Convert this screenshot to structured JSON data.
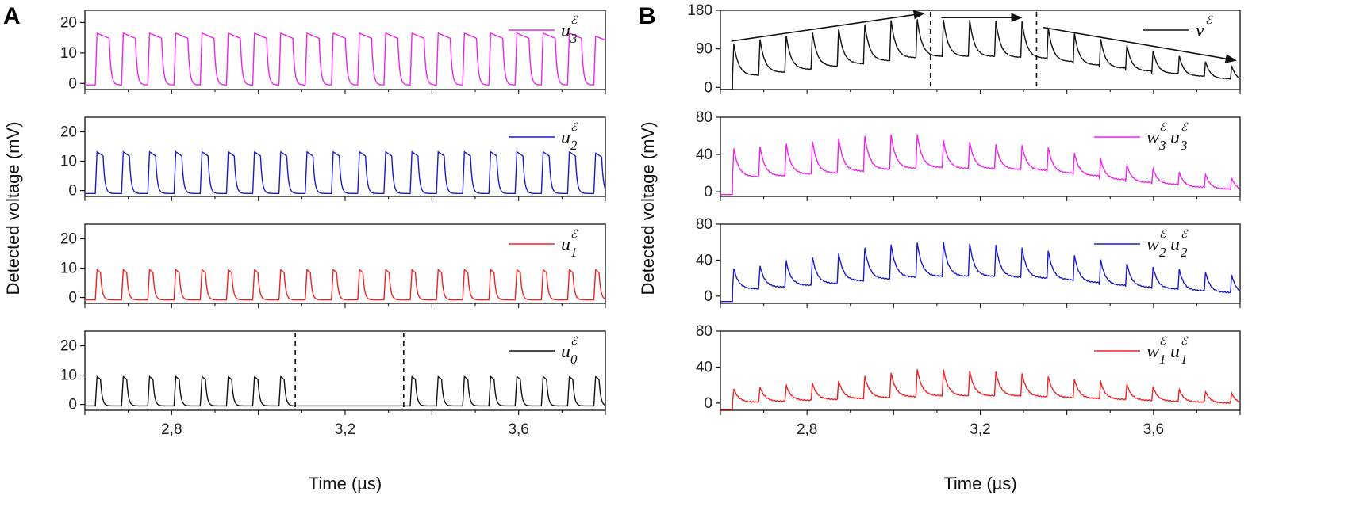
{
  "figure": {
    "panel_a_letter": "A",
    "panel_b_letter": "B"
  },
  "chart_data": [
    {
      "id": "A1",
      "panel": "A",
      "type": "line",
      "title": "",
      "xlabel": "",
      "ylabel": "Detected voltage (mV)",
      "xlim": [
        2.6,
        3.8
      ],
      "ylim": [
        -2,
        24
      ],
      "yticks": [
        0,
        10,
        20
      ],
      "ytick_labels": [
        "0",
        "10",
        "20"
      ],
      "color": "#ee22ee",
      "legend": {
        "base": "u",
        "sub": "3",
        "sup": "ℰ",
        "position": "top-right"
      },
      "signal": {
        "t0": 2.628,
        "period": 0.0605,
        "count": 20,
        "amplitudes": [
          16.5,
          16.5,
          16.5,
          16.5,
          16.5,
          16.5,
          16.5,
          16.5,
          16.5,
          16.5,
          16.5,
          16.5,
          16.5,
          16.5,
          16.5,
          16.5,
          16.5,
          16.5,
          16.5,
          15.5
        ],
        "pulse_width": 0.028,
        "baseline": -0.5
      }
    },
    {
      "id": "A2",
      "panel": "A",
      "type": "line",
      "title": "",
      "xlabel": "",
      "ylabel": "",
      "xlim": [
        2.6,
        3.8
      ],
      "ylim": [
        -2,
        25
      ],
      "yticks": [
        0,
        10,
        20
      ],
      "ytick_labels": [
        "0",
        "10",
        "20"
      ],
      "color": "#1a1acc",
      "legend": {
        "base": "u",
        "sub": "2",
        "sup": "ℰ",
        "position": "top-right"
      },
      "signal": {
        "t0": 2.628,
        "period": 0.0605,
        "count": 20,
        "amplitudes": [
          13.2,
          13.2,
          13.2,
          13.2,
          13.2,
          13.2,
          13.2,
          13.2,
          13.2,
          13.2,
          13.2,
          13.2,
          13.2,
          13.2,
          13.2,
          13.2,
          13.2,
          13.2,
          13.2,
          12.8
        ],
        "pulse_width": 0.014,
        "baseline": -1.0
      }
    },
    {
      "id": "A3",
      "panel": "A",
      "type": "line",
      "title": "",
      "xlabel": "",
      "ylabel": "",
      "xlim": [
        2.6,
        3.8
      ],
      "ylim": [
        -2,
        25
      ],
      "yticks": [
        0,
        10,
        20
      ],
      "ytick_labels": [
        "0",
        "10",
        "20"
      ],
      "color": "#ee2222",
      "legend": {
        "base": "u",
        "sub": "1",
        "sup": "ℰ",
        "position": "top-right"
      },
      "signal": {
        "t0": 2.628,
        "period": 0.0605,
        "count": 20,
        "amplitudes": [
          9.5,
          9.5,
          9.5,
          9.5,
          9.5,
          9.5,
          9.5,
          9.5,
          9.5,
          9.5,
          9.5,
          9.5,
          9.5,
          9.5,
          9.5,
          9.5,
          9.5,
          9.5,
          9.5,
          9.5
        ],
        "pulse_width": 0.008,
        "baseline": -0.8
      }
    },
    {
      "id": "A4",
      "panel": "A",
      "type": "line",
      "title": "",
      "xlabel": "Time (µs)",
      "ylabel": "",
      "xlim": [
        2.6,
        3.8
      ],
      "ylim": [
        -2,
        25
      ],
      "yticks": [
        0,
        10,
        20
      ],
      "ytick_labels": [
        "0",
        "10",
        "20"
      ],
      "xticks": [
        2.8,
        3.2,
        3.6
      ],
      "xtick_labels": [
        "2,8",
        "3,2",
        "3,6"
      ],
      "color": "#111111",
      "legend": {
        "base": "u",
        "sub": "0",
        "sup": "ℰ",
        "position": "top-right"
      },
      "signal": {
        "t0": 2.628,
        "period": 0.0605,
        "count": 20,
        "amplitudes": [
          9.5,
          9.5,
          9.5,
          9.5,
          9.5,
          9.5,
          9.5,
          9.5,
          0,
          0,
          0,
          0,
          9.5,
          9.5,
          9.5,
          9.5,
          9.5,
          9.5,
          9.5,
          9.5
        ],
        "pulse_width": 0.008,
        "baseline": -0.5
      },
      "dashed_lines_x": [
        3.085,
        3.335
      ]
    },
    {
      "id": "B1",
      "panel": "B",
      "type": "line",
      "title": "",
      "xlabel": "",
      "ylabel": "Detected voltage (mV)",
      "xlim": [
        2.6,
        3.8
      ],
      "ylim": [
        -5,
        180
      ],
      "yticks": [
        0,
        90,
        180
      ],
      "ytick_labels": [
        "0",
        "90",
        "180"
      ],
      "color": "#111111",
      "legend": {
        "base": "v",
        "sub": "",
        "sup": "ℰ",
        "position": "top-right"
      },
      "signal": {
        "t0": 2.628,
        "period": 0.0605,
        "count": 20,
        "peaks": [
          102,
          113,
          122,
          130,
          139,
          148,
          158,
          160,
          158,
          158,
          156,
          155,
          140,
          127,
          114,
          100,
          87,
          74,
          61,
          51
        ],
        "levels": [
          28,
          35,
          42,
          49,
          55,
          62,
          69,
          72,
          72,
          72,
          70,
          68,
          60,
          52,
          45,
          38,
          32,
          26,
          20,
          14
        ],
        "start_x": 2.628
      },
      "arrows": [
        {
          "from": [
            2.625,
            108
          ],
          "to": [
            3.07,
            173
          ]
        },
        {
          "from": [
            3.11,
            163
          ],
          "to": [
            3.295,
            163
          ]
        },
        {
          "from": [
            3.345,
            140
          ],
          "to": [
            3.79,
            63
          ]
        }
      ],
      "dashed_lines_x": [
        3.085,
        3.33
      ]
    },
    {
      "id": "B2",
      "panel": "B",
      "type": "line",
      "title": "",
      "xlabel": "",
      "ylabel": "",
      "xlim": [
        2.6,
        3.8
      ],
      "ylim": [
        -5,
        80
      ],
      "yticks": [
        0,
        40,
        80
      ],
      "ytick_labels": [
        "0",
        "40",
        "80"
      ],
      "color": "#ee22ee",
      "legend": {
        "base1": "w",
        "sub1": "3",
        "base2": "u",
        "sub2": "3",
        "sup": "ℰ",
        "position": "top-right"
      },
      "signal": {
        "t0": 2.628,
        "period": 0.0605,
        "count": 20,
        "peaks": [
          47,
          49,
          52,
          55,
          58,
          60,
          62,
          62,
          55,
          54,
          51,
          50,
          48,
          42,
          35,
          29,
          25,
          21,
          19,
          15
        ],
        "levels": [
          16,
          17,
          19,
          20,
          22,
          24,
          25,
          26,
          25,
          25,
          24,
          23,
          20,
          17,
          13,
          10,
          8,
          5,
          3,
          1
        ],
        "start_x": 2.628,
        "pre_level": -3
      }
    },
    {
      "id": "B3",
      "panel": "B",
      "type": "line",
      "title": "",
      "xlabel": "",
      "ylabel": "",
      "xlim": [
        2.6,
        3.8
      ],
      "ylim": [
        -8,
        80
      ],
      "yticks": [
        0,
        40,
        80
      ],
      "ytick_labels": [
        "0",
        "40",
        "80"
      ],
      "color": "#1a1acc",
      "legend": {
        "base1": "w",
        "sub1": "2",
        "base2": "u",
        "sub2": "2",
        "sup": "ℰ",
        "position": "top-right"
      },
      "signal": {
        "t0": 2.628,
        "period": 0.0605,
        "count": 20,
        "peaks": [
          31,
          34,
          39,
          44,
          48,
          54,
          58,
          60,
          60,
          59,
          57,
          54,
          51,
          46,
          41,
          37,
          33,
          30,
          27,
          24
        ],
        "levels": [
          8,
          10,
          12,
          14,
          17,
          19,
          21,
          22,
          22,
          22,
          21,
          20,
          18,
          15,
          12,
          10,
          8,
          6,
          4,
          2
        ],
        "start_x": 2.628,
        "pre_level": -6
      }
    },
    {
      "id": "B4",
      "panel": "B",
      "type": "line",
      "title": "",
      "xlabel": "Time (µs)",
      "ylabel": "",
      "xlim": [
        2.6,
        3.8
      ],
      "ylim": [
        -8,
        80
      ],
      "yticks": [
        0,
        40,
        80
      ],
      "ytick_labels": [
        "0",
        "40",
        "80"
      ],
      "xticks": [
        2.8,
        3.2,
        3.6
      ],
      "xtick_labels": [
        "2,8",
        "3,2",
        "3,6"
      ],
      "color": "#ee2222",
      "legend": {
        "base1": "w",
        "sub1": "1",
        "base2": "u",
        "sub2": "1",
        "sup": "ℰ",
        "position": "top-right"
      },
      "signal": {
        "t0": 2.628,
        "period": 0.0605,
        "count": 20,
        "peaks": [
          16,
          18,
          20,
          22,
          25,
          30,
          34,
          38,
          37,
          36,
          35,
          33,
          30,
          27,
          24,
          21,
          18,
          15,
          13,
          11
        ],
        "levels": [
          1,
          2,
          3,
          4,
          5,
          6,
          7,
          8,
          8,
          8,
          8,
          7,
          6,
          5,
          4,
          3,
          2,
          1,
          0,
          -1
        ],
        "start_x": 2.628,
        "pre_level": -7
      }
    }
  ]
}
